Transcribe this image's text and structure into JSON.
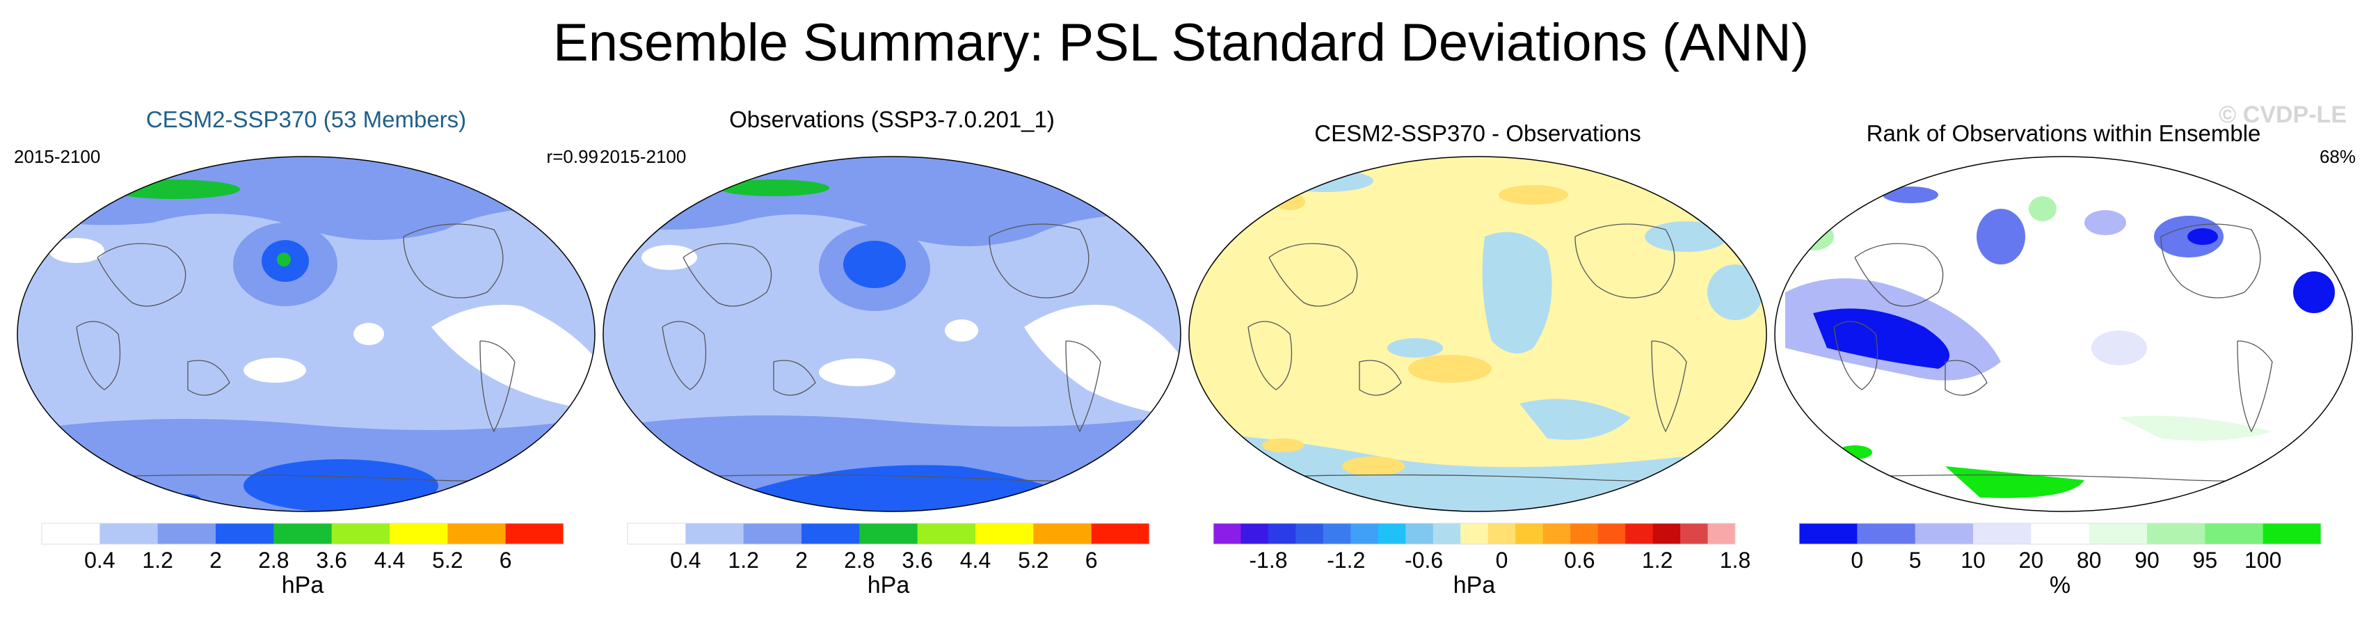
{
  "title": "Ensemble Summary: PSL Standard Deviations (ANN)",
  "watermark": "© CVDP-LE",
  "chart_data": [
    {
      "type": "heatmap",
      "title": "CESM2-SSP370 (53 Members)",
      "title_color": "#1f5f8b",
      "period": "2015-2100",
      "stat": "r=0.99",
      "units": "hPa",
      "levels": [
        "0.4",
        "1.2",
        "2",
        "2.8",
        "3.6",
        "4.4",
        "5.2",
        "6"
      ],
      "colors": [
        "#ffffff",
        "#b4c8f8",
        "#7f9cf0",
        "#1f5ff5",
        "#16c032",
        "#9cf01e",
        "#ffff00",
        "#ffa500",
        "#ff2000"
      ]
    },
    {
      "type": "heatmap",
      "title": "Observations (SSP3-7.0.201_1)",
      "title_color": "#000000",
      "period": "2015-2100",
      "stat": "",
      "units": "hPa",
      "levels": [
        "0.4",
        "1.2",
        "2",
        "2.8",
        "3.6",
        "4.4",
        "5.2",
        "6"
      ],
      "colors": [
        "#ffffff",
        "#b4c8f8",
        "#7f9cf0",
        "#1f5ff5",
        "#16c032",
        "#9cf01e",
        "#ffff00",
        "#ffa500",
        "#ff2000"
      ]
    },
    {
      "type": "heatmap",
      "title": "CESM2-SSP370 - Observations",
      "title_color": "#000000",
      "period": "",
      "stat": "",
      "units": "hPa",
      "levels": [
        "-1.8",
        "-1.2",
        "-0.6",
        "0",
        "0.6",
        "1.2",
        "1.8"
      ],
      "colors": [
        "#8a1ee8",
        "#3c18e6",
        "#2a3ce8",
        "#2e5ce8",
        "#3a7cf0",
        "#40a0f8",
        "#20c0f8",
        "#80c8f0",
        "#b0dcf0",
        "#fff6a8",
        "#ffe070",
        "#ffc830",
        "#ffa820",
        "#ff8010",
        "#ff5810",
        "#f02010",
        "#c80a0a",
        "#dc4646",
        "#f8a8a8"
      ]
    },
    {
      "type": "heatmap",
      "title": "Rank of Observations within Ensemble",
      "title_color": "#000000",
      "period": "",
      "stat": "68%",
      "units": "%",
      "levels": [
        "0",
        "5",
        "10",
        "20",
        "80",
        "90",
        "95",
        "100"
      ],
      "colors": [
        "#0a14f0",
        "#6678f0",
        "#b0b8f8",
        "#e4e6fc",
        "#ffffff",
        "#e4fce4",
        "#b0f4b0",
        "#7cf07c",
        "#10e810"
      ]
    }
  ]
}
